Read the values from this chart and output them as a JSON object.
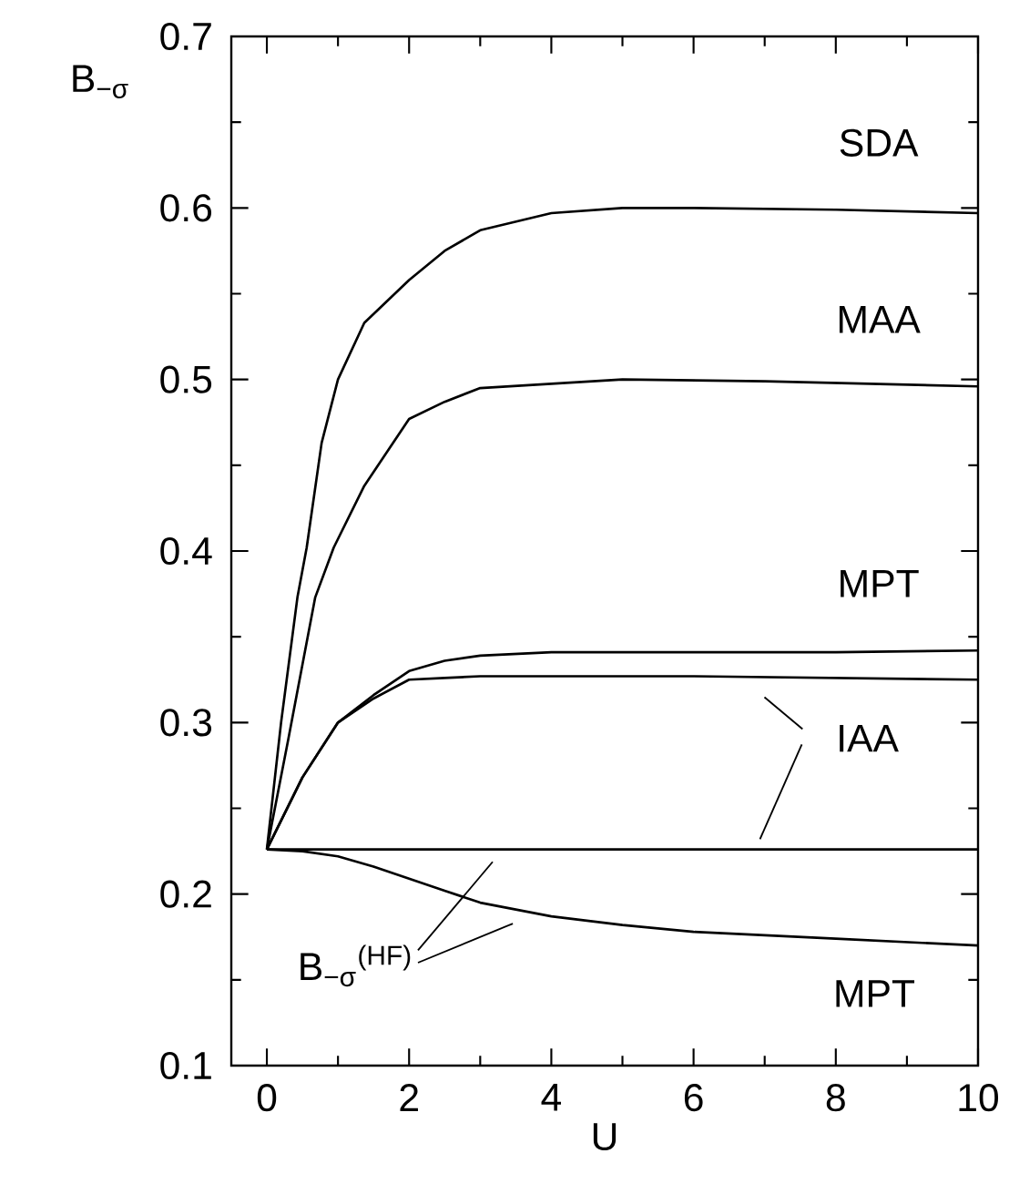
{
  "chart_data": {
    "type": "line",
    "xlabel": "U",
    "ylabel": "B$_{−σ}$",
    "xlim": [
      -0.5,
      10
    ],
    "ylim": [
      0.1,
      0.7
    ],
    "xticks": [
      0,
      2,
      4,
      6,
      8,
      10
    ],
    "yticks": [
      0.1,
      0.2,
      0.3,
      0.4,
      0.5,
      0.6,
      0.7
    ],
    "series": [
      {
        "name": "SDA",
        "color": "#000000",
        "x": [
          0,
          0.2,
          0.43,
          0.56,
          0.77,
          1.0,
          1.37,
          2,
          2.5,
          3,
          4,
          5,
          6,
          8,
          10
        ],
        "values": [
          0.226,
          0.3,
          0.373,
          0.402,
          0.463,
          0.5,
          0.533,
          0.558,
          0.575,
          0.587,
          0.597,
          0.6,
          0.6,
          0.599,
          0.597
        ]
      },
      {
        "name": "MAA",
        "color": "#000000",
        "x": [
          0,
          0.3,
          0.68,
          0.94,
          1.37,
          2,
          2.5,
          3,
          5,
          7,
          10
        ],
        "values": [
          0.226,
          0.29,
          0.373,
          0.402,
          0.438,
          0.477,
          0.487,
          0.495,
          0.5,
          0.499,
          0.496
        ]
      },
      {
        "name": "MPT",
        "color": "#000000",
        "x": [
          0,
          0.5,
          1,
          1.5,
          2,
          2.5,
          3,
          4,
          6,
          8,
          10
        ],
        "values": [
          0.226,
          0.268,
          0.3,
          0.316,
          0.33,
          0.336,
          0.339,
          0.341,
          0.341,
          0.341,
          0.342
        ]
      },
      {
        "color": "#000000",
        "x": [
          0,
          0.5,
          1,
          1.5,
          2,
          2.5,
          3,
          4,
          6,
          8,
          10
        ],
        "values": [
          0.226,
          0.268,
          0.3,
          0.314,
          0.325,
          0.326,
          0.327,
          0.327,
          0.327,
          0.326,
          0.325
        ]
      },
      {
        "color": "#000000",
        "x": [
          0,
          10
        ],
        "values": [
          0.226,
          0.226
        ]
      },
      {
        "name": "MPT",
        "color": "#000000",
        "x": [
          0,
          0.5,
          1,
          1.5,
          2,
          2.5,
          3,
          4,
          5,
          6,
          8,
          10
        ],
        "values": [
          0.226,
          0.225,
          0.222,
          0.216,
          0.209,
          0.202,
          0.195,
          0.187,
          0.182,
          0.178,
          0.174,
          0.17
        ]
      }
    ],
    "legend": "right",
    "annotations": [
      "IAA",
      "B$_{−σ}$$^{(HF)}$"
    ]
  }
}
